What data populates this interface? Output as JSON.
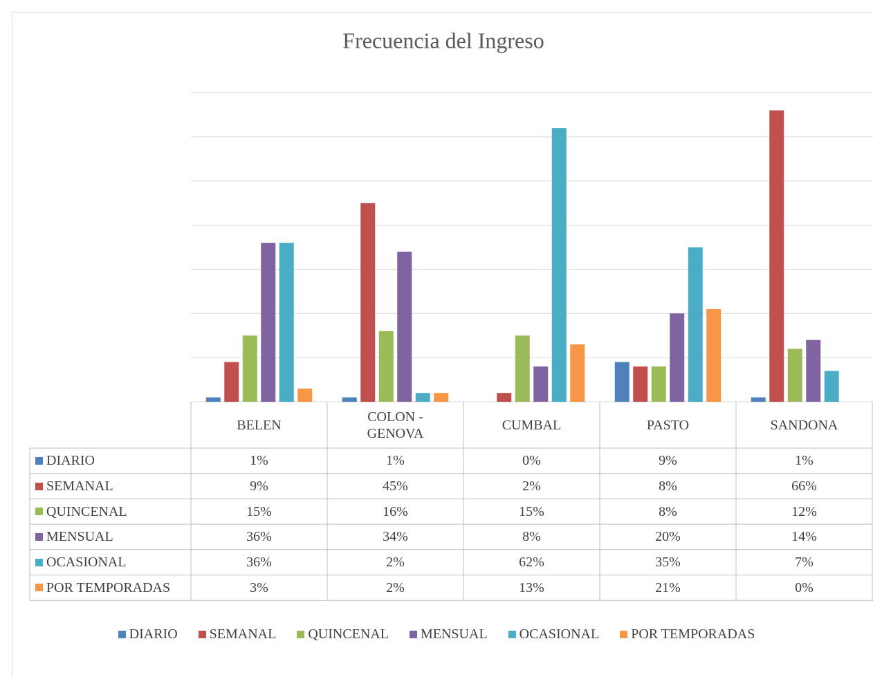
{
  "chart_data": {
    "type": "bar",
    "title": "Frecuencia del Ingreso",
    "categories": [
      "BELEN",
      "COLON - GENOVA",
      "CUMBAL",
      "PASTO",
      "SANDONA"
    ],
    "series": [
      {
        "name": "DIARIO",
        "color": "#4f81bd",
        "values": [
          1,
          1,
          0,
          9,
          1
        ],
        "value_labels": [
          "1%",
          "1%",
          "0%",
          "9%",
          "1%"
        ]
      },
      {
        "name": "SEMANAL",
        "color": "#c0504d",
        "values": [
          9,
          45,
          2,
          8,
          66
        ],
        "value_labels": [
          "9%",
          "45%",
          "2%",
          "8%",
          "66%"
        ]
      },
      {
        "name": "QUINCENAL",
        "color": "#9bbb59",
        "values": [
          15,
          16,
          15,
          8,
          12
        ],
        "value_labels": [
          "15%",
          "16%",
          "15%",
          "8%",
          "12%"
        ]
      },
      {
        "name": "MENSUAL",
        "color": "#8064a2",
        "values": [
          36,
          34,
          8,
          20,
          14
        ],
        "value_labels": [
          "36%",
          "34%",
          "8%",
          "20%",
          "14%"
        ]
      },
      {
        "name": "OCASIONAL",
        "color": "#4bacc6",
        "values": [
          36,
          2,
          62,
          35,
          7
        ],
        "value_labels": [
          "36%",
          "2%",
          "62%",
          "35%",
          "7%"
        ]
      },
      {
        "name": "POR TEMPORADAS",
        "color": "#f79646",
        "values": [
          3,
          2,
          13,
          21,
          0
        ],
        "value_labels": [
          "3%",
          "2%",
          "13%",
          "21%",
          "0%"
        ]
      }
    ],
    "ylim": [
      0,
      70
    ],
    "yticks": [
      0,
      10,
      20,
      30,
      40,
      50,
      60,
      70
    ],
    "grid": true,
    "legend": "bottom"
  }
}
